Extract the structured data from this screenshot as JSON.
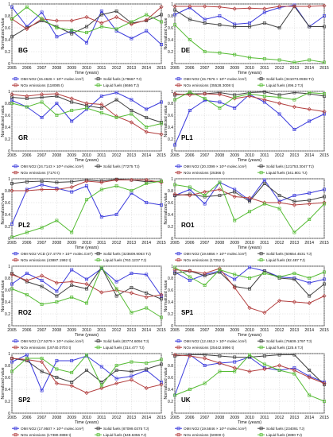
{
  "figure": {
    "x_label": "Time (years)",
    "y_label": "Normalized value",
    "x_ticks": [
      "2005",
      "2006",
      "2007",
      "2008",
      "2009",
      "2010",
      "2011",
      "2012",
      "2013",
      "2014",
      "2015"
    ],
    "y_ticks": [
      "0",
      "0.2",
      "0.4",
      "0.6",
      "0.8",
      "1"
    ]
  },
  "chart_data": [
    {
      "type": "line",
      "region": "BG",
      "title": "",
      "x": [
        2005,
        2006,
        2007,
        2008,
        2009,
        2010,
        2011,
        2012,
        2013,
        2014,
        2015
      ],
      "xlim": [
        2005,
        2015
      ],
      "ylim": [
        0,
        1
      ],
      "grid": true,
      "series": [
        {
          "key": "omi",
          "name": "OMI NO2 (15.4626 × 10¹⁵ molec./cm²)",
          "color": "#3b3bdc",
          "marker": "square",
          "values": [
            0.95,
            0.62,
            0.86,
            0.45,
            0.55,
            0.35,
            0.88,
            0.55,
            0.42,
            0.55,
            0.32
          ]
        },
        {
          "key": "solid",
          "name": "Solid fuels (179667 TJ)",
          "color": "#404040",
          "marker": "square",
          "values": [
            0.45,
            0.6,
            0.72,
            0.62,
            0.5,
            0.62,
            0.82,
            0.88,
            0.68,
            0.72,
            0.82
          ]
        },
        {
          "key": "nox",
          "name": "NOx emissions (118085 t)",
          "color": "#b34040",
          "marker": "diamond",
          "values": [
            0.75,
            0.58,
            0.75,
            0.72,
            0.72,
            0.78,
            0.68,
            0.78,
            0.66,
            0.73,
            0.95
          ]
        },
        {
          "key": "liquid",
          "name": "Liquid fuels (6666 TJ)",
          "color": "#55bb33",
          "marker": "square",
          "values": [
            0.75,
            0.95,
            0.75,
            0.6,
            0.56,
            0.52,
            0.62,
            0.58,
            0.7,
            0.82,
            0.7
          ]
        }
      ]
    },
    {
      "type": "line",
      "region": "DE",
      "title": "",
      "x": [
        2005,
        2006,
        2007,
        2008,
        2009,
        2010,
        2011,
        2012,
        2013,
        2014,
        2015
      ],
      "xlim": [
        2005,
        2015
      ],
      "ylim": [
        0,
        1
      ],
      "grid": true,
      "series": [
        {
          "key": "omi",
          "name": "OMI NO2 (15.7576 × 10¹⁵ molec./cm²)",
          "color": "#3b3bdc",
          "marker": "square",
          "values": [
            0.82,
            0.94,
            0.74,
            0.8,
            0.66,
            0.68,
            0.86,
            0.94,
            0.98,
            0.62,
            0.8
          ]
        },
        {
          "key": "solid",
          "name": "Solid fuels (341073.0938 TJ)",
          "color": "#404040",
          "marker": "square",
          "values": [
            0.9,
            0.74,
            0.68,
            0.65,
            0.62,
            0.62,
            0.68,
            0.6,
            0.96,
            0.62,
            0.62
          ]
        },
        {
          "key": "nox",
          "name": "NOx emissions (35528.3008 t)",
          "color": "#b34040",
          "marker": "diamond",
          "values": [
            0.96,
            0.96,
            0.96,
            0.95,
            0.92,
            0.93,
            0.92,
            0.96,
            0.96,
            0.96,
            0.97
          ]
        },
        {
          "key": "liquid",
          "name": "Liquid fuels (496.2 TJ)",
          "color": "#55bb33",
          "marker": "square",
          "values": [
            0.65,
            0.4,
            0.2,
            0.18,
            0.15,
            0.1,
            0.08,
            0.06,
            0.02,
            0.06,
            0.02
          ]
        }
      ]
    },
    {
      "type": "line",
      "region": "GR",
      "title": "",
      "x": [
        2005,
        2006,
        2007,
        2008,
        2009,
        2010,
        2011,
        2012,
        2013,
        2014,
        2015
      ],
      "xlim": [
        2005,
        2015
      ],
      "ylim": [
        0,
        1
      ],
      "grid": true,
      "series": [
        {
          "key": "omi",
          "name": "OMI NO2 (24.7143 × 10¹⁵ molec./cm²)",
          "color": "#3b3bdc",
          "marker": "square",
          "values": [
            0.85,
            0.74,
            0.56,
            0.8,
            0.5,
            0.7,
            0.92,
            0.98,
            0.86,
            0.7,
            0.82
          ]
        },
        {
          "key": "solid",
          "name": "Solid fuels (77275 TJ)",
          "color": "#404040",
          "marker": "square",
          "values": [
            0.9,
            0.88,
            0.9,
            0.92,
            0.82,
            0.76,
            0.72,
            0.86,
            0.68,
            0.56,
            0.48
          ]
        },
        {
          "key": "nox",
          "name": "NOx emissions (7170 t)",
          "color": "#b34040",
          "marker": "diamond",
          "values": [
            0.95,
            0.92,
            0.95,
            0.96,
            0.88,
            0.8,
            0.78,
            0.58,
            0.48,
            0.32,
            0.28
          ]
        },
        {
          "key": "liquid",
          "name": "",
          "color": "#55bb33",
          "marker": "square",
          "values": [
            0.8,
            0.74,
            0.82,
            0.6,
            0.68,
            0.72,
            0.64,
            0.56,
            0.62,
            0.4,
            0.46
          ]
        }
      ]
    },
    {
      "type": "line",
      "region": "PL1",
      "title": "",
      "x": [
        2005,
        2006,
        2007,
        2008,
        2009,
        2010,
        2011,
        2012,
        2013,
        2014,
        2015
      ],
      "xlim": [
        2005,
        2015
      ],
      "ylim": [
        0,
        1
      ],
      "grid": true,
      "series": [
        {
          "key": "omi",
          "name": "OMI NO2 (20.3399 × 10¹⁵ molec./cm²)",
          "color": "#3b3bdc",
          "marker": "square",
          "values": [
            0.1,
            0.68,
            0.85,
            0.82,
            0.72,
            0.95,
            0.82,
            0.62,
            0.36,
            0.5,
            0.62
          ]
        },
        {
          "key": "solid",
          "name": "Solid fuels (121753.3047 TJ)",
          "color": "#404040",
          "marker": "square",
          "values": [
            0.94,
            0.96,
            0.96,
            0.98,
            0.94,
            0.98,
            0.99,
            0.94,
            0.98,
            0.96,
            0.92
          ]
        },
        {
          "key": "nox",
          "name": "NOx emissions (25366 t)",
          "color": "#b34040",
          "marker": "diamond",
          "values": [
            0.96,
            0.94,
            0.96,
            0.95,
            0.88,
            0.92,
            0.86,
            0.8,
            0.74,
            0.7,
            0.66
          ]
        },
        {
          "key": "liquid",
          "name": "Liquid fuels (341.801 TJ)",
          "color": "#55bb33",
          "marker": "square",
          "values": [
            0.86,
            0.99,
            0.88,
            0.72,
            0.9,
            0.96,
            0.92,
            0.9,
            0.86,
            0.98,
            0.96
          ]
        }
      ]
    },
    {
      "type": "line",
      "region": "PL2",
      "title": "",
      "x": [
        2005,
        2006,
        2007,
        2008,
        2009,
        2010,
        2011,
        2012,
        2013,
        2014,
        2015
      ],
      "xlim": [
        2005,
        2015
      ],
      "ylim": [
        0,
        1
      ],
      "grid": true,
      "series": [
        {
          "key": "omi",
          "name": "OMI NO2 VCD (27.4779 × 10¹⁵ molec./cm²)",
          "color": "#3b3bdc",
          "marker": "square",
          "values": [
            0.24,
            0.82,
            0.9,
            0.84,
            0.78,
            0.88,
            0.36,
            0.4,
            0.76,
            0.6,
            0.56
          ]
        },
        {
          "key": "solid",
          "name": "Solid fuels (323609.9063 TJ)",
          "color": "#404040",
          "marker": "square",
          "values": [
            0.92,
            0.95,
            0.96,
            0.94,
            0.95,
            0.98,
            0.96,
            0.99,
            0.98,
            0.95,
            0.96
          ]
        },
        {
          "key": "nox",
          "name": "NOx emissions (43887.1992 t)",
          "color": "#b34040",
          "marker": "diamond",
          "values": [
            0.8,
            0.8,
            0.82,
            0.82,
            0.86,
            0.96,
            0.94,
            0.98,
            0.98,
            0.98,
            0.94
          ]
        },
        {
          "key": "liquid",
          "name": "Liquid fuels (763.1237 TJ)",
          "color": "#55bb33",
          "marker": "square",
          "values": [
            0.02,
            0.1,
            0.18,
            0.3,
            0.1,
            0.65,
            0.82,
            0.88,
            0.8,
            0.92,
            0.96
          ]
        }
      ]
    },
    {
      "type": "line",
      "region": "RO1",
      "title": "",
      "x": [
        2005,
        2006,
        2007,
        2008,
        2009,
        2010,
        2011,
        2012,
        2013,
        2014,
        2015
      ],
      "xlim": [
        2005,
        2015
      ],
      "ylim": [
        0,
        1
      ],
      "grid": true,
      "series": [
        {
          "key": "omi",
          "name": "OMI NO2 (19.6856 × 10¹⁵ molec./cm²)",
          "color": "#3b3bdc",
          "marker": "square",
          "values": [
            0.72,
            0.82,
            0.58,
            0.94,
            0.82,
            0.64,
            0.98,
            0.62,
            0.72,
            0.76,
            0.82
          ]
        },
        {
          "key": "solid",
          "name": "Solid fuels (60654.4531 TJ)",
          "color": "#404040",
          "marker": "square",
          "values": [
            0.72,
            0.74,
            0.7,
            0.72,
            0.78,
            0.62,
            0.92,
            0.72,
            0.62,
            0.64,
            0.7
          ]
        },
        {
          "key": "nox",
          "name": "NOx emissions (17252 t)",
          "color": "#b34040",
          "marker": "diamond",
          "values": [
            0.74,
            0.72,
            0.78,
            0.82,
            0.7,
            0.68,
            0.6,
            0.6,
            0.56,
            0.58,
            0.6
          ]
        },
        {
          "key": "liquid",
          "name": "Liquid fuels (92.487 TJ)",
          "color": "#55bb33",
          "marker": "square",
          "values": [
            0.9,
            0.86,
            0.72,
            0.94,
            0.3,
            0.45,
            0.58,
            0.5,
            0.1,
            0.32,
            0.58
          ]
        }
      ]
    },
    {
      "type": "line",
      "region": "RO2",
      "title": "",
      "x": [
        2005,
        2006,
        2007,
        2008,
        2009,
        2010,
        2011,
        2012,
        2013,
        2014,
        2015
      ],
      "xlim": [
        2005,
        2015
      ],
      "ylim": [
        0,
        1
      ],
      "grid": true,
      "series": [
        {
          "key": "omi",
          "name": "OMI NO2 (17.5279 × 10¹⁵ molec./cm²)",
          "color": "#3b3bdc",
          "marker": "square",
          "values": [
            0.7,
            0.88,
            0.76,
            0.58,
            0.94,
            0.78,
            0.96,
            0.74,
            0.88,
            0.86,
            0.5
          ]
        },
        {
          "key": "solid",
          "name": "Solid fuels (83774.6094 TJ)",
          "color": "#404040",
          "marker": "square",
          "values": [
            0.88,
            0.74,
            0.66,
            0.5,
            0.68,
            0.62,
            0.98,
            0.5,
            0.64,
            0.55,
            0.45
          ]
        },
        {
          "key": "nox",
          "name": "NOx emissions (19740.0703 t)",
          "color": "#b34040",
          "marker": "diamond",
          "values": [
            0.86,
            0.76,
            0.84,
            0.72,
            0.74,
            0.7,
            0.56,
            0.6,
            0.55,
            0.48,
            0.52
          ]
        },
        {
          "key": "liquid",
          "name": "Liquid fuels (314.477 TJ)",
          "color": "#55bb33",
          "marker": "square",
          "values": [
            0.62,
            0.52,
            0.36,
            0.4,
            0.48,
            0.38,
            0.98,
            0.62,
            0.22,
            0.3,
            0.14
          ]
        }
      ]
    },
    {
      "type": "line",
      "region": "SP1",
      "title": "",
      "x": [
        2005,
        2006,
        2007,
        2008,
        2009,
        2010,
        2011,
        2012,
        2013,
        2014,
        2015
      ],
      "xlim": [
        2005,
        2015
      ],
      "ylim": [
        0,
        1
      ],
      "grid": true,
      "series": [
        {
          "key": "omi",
          "name": "OMI NO2 (12.4612 × 10¹⁵ molec./cm²)",
          "color": "#3b3bdc",
          "marker": "square",
          "values": [
            0.9,
            0.76,
            0.86,
            0.92,
            0.78,
            0.98,
            0.92,
            0.82,
            0.8,
            0.72,
            0.78
          ]
        },
        {
          "key": "solid",
          "name": "Solid fuels (76609.1797 TJ)",
          "color": "#404040",
          "marker": "square",
          "values": [
            0.88,
            0.92,
            0.84,
            0.9,
            0.66,
            0.62,
            0.92,
            0.8,
            0.78,
            0.5,
            0.7
          ]
        },
        {
          "key": "nox",
          "name": "NOx emissions (25442.5996 t)",
          "color": "#b34040",
          "marker": "diamond",
          "values": [
            0.94,
            0.92,
            0.88,
            0.96,
            0.64,
            0.3,
            0.22,
            0.42,
            0.4,
            0.38,
            0.5
          ]
        },
        {
          "key": "liquid",
          "name": "Liquid fuels (225.6 TJ)",
          "color": "#55bb33",
          "marker": "square",
          "values": [
            0.98,
            0.82,
            0.68,
            0.94,
            0.86,
            0.8,
            0.88,
            0.82,
            0.88,
            0.8,
            0.9
          ]
        }
      ]
    },
    {
      "type": "line",
      "region": "SP2",
      "title": "",
      "x": [
        2005,
        2006,
        2007,
        2008,
        2009,
        2010,
        2011,
        2012,
        2013,
        2014,
        2015
      ],
      "xlim": [
        2005,
        2015
      ],
      "ylim": [
        0,
        1
      ],
      "grid": true,
      "series": [
        {
          "key": "omi",
          "name": "OMI NO2 (17.9507 × 10¹⁵ molec./cm²)",
          "color": "#3b3bdc",
          "marker": "square",
          "values": [
            0.86,
            0.98,
            0.38,
            0.88,
            0.88,
            0.96,
            0.78,
            0.58,
            0.62,
            0.72,
            0.52
          ]
        },
        {
          "key": "solid",
          "name": "Solid fuels (87099.0375 TJ)",
          "color": "#404040",
          "marker": "square",
          "values": [
            0.92,
            0.88,
            0.7,
            0.6,
            0.52,
            0.72,
            0.52,
            0.72,
            0.7,
            0.74,
            0.82
          ]
        },
        {
          "key": "nox",
          "name": "NOx emissions (17380.0898 t)",
          "color": "#b34040",
          "marker": "diamond",
          "values": [
            0.92,
            0.9,
            0.86,
            0.5,
            0.46,
            0.34,
            0.42,
            0.5,
            0.56,
            0.42,
            0.48
          ]
        },
        {
          "key": "liquid",
          "name": "Liquid fuels (548.6356 TJ)",
          "color": "#55bb33",
          "marker": "square",
          "values": [
            0.7,
            0.92,
            0.92,
            0.74,
            0.68,
            0.98,
            0.46,
            0.8,
            0.86,
            0.84,
            0.9
          ]
        }
      ]
    },
    {
      "type": "line",
      "region": "UK",
      "title": "",
      "x": [
        2005,
        2006,
        2007,
        2008,
        2009,
        2010,
        2011,
        2012,
        2013,
        2014,
        2015
      ],
      "xlim": [
        2005,
        2015
      ],
      "ylim": [
        0,
        1
      ],
      "grid": true,
      "series": [
        {
          "key": "omi",
          "name": "OMI NO2 (19.5846 × 10¹⁵ molec./cm²)",
          "color": "#3b3bdc",
          "marker": "square",
          "values": [
            0.3,
            0.98,
            0.8,
            0.84,
            0.86,
            0.94,
            0.76,
            0.72,
            0.76,
            0.62,
            0.52
          ]
        },
        {
          "key": "solid",
          "name": "Solid fuels (234091 TJ)",
          "color": "#404040",
          "marker": "square",
          "values": [
            0.96,
            0.98,
            0.98,
            0.96,
            0.94,
            0.94,
            0.96,
            0.98,
            0.98,
            0.72,
            0.48
          ]
        },
        {
          "key": "nox",
          "name": "NOx emissions (60000 t)",
          "color": "#b34040",
          "marker": "diamond",
          "values": [
            0.98,
            0.96,
            0.92,
            0.84,
            0.76,
            0.7,
            0.74,
            0.8,
            0.72,
            0.6,
            0.5
          ]
        },
        {
          "key": "liquid",
          "name": "Liquid fuels (2890 TJ)",
          "color": "#55bb33",
          "marker": "square",
          "values": [
            0.3,
            0.4,
            0.5,
            0.7,
            0.7,
            0.98,
            0.82,
            0.72,
            0.66,
            0.3,
            0.2
          ]
        }
      ]
    }
  ]
}
